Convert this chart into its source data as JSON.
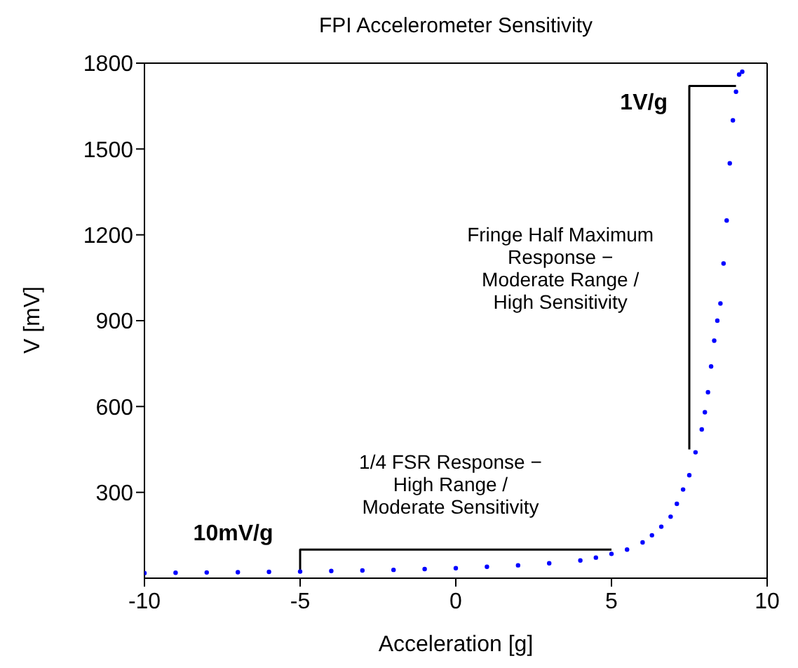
{
  "chart_data": {
    "type": "scatter",
    "title": "FPI Accelerometer Sensitivity",
    "xlabel": "Acceleration [g]",
    "ylabel": "V [mV]",
    "xlim": [
      -10,
      10
    ],
    "xticks": [
      -10,
      -5,
      0,
      5,
      10
    ],
    "ylim": [
      0,
      1800
    ],
    "yticks": [
      300,
      600,
      900,
      1200,
      1500,
      1800
    ],
    "grid": false,
    "legend": false,
    "marker": "circle",
    "annotations": [
      "10mV/g",
      "1/4 FSR Response −\nHigh Range /\nModerate Sensitivity",
      "1V/g",
      "Fringe Half Maximum\nResponse −\nModerate Range /\nHigh Sensitivity"
    ],
    "series": [
      {
        "color": "#0000ff",
        "x": [
          -10,
          -9,
          -8,
          -7,
          -6,
          -5,
          -4,
          -3,
          -2,
          -1,
          0,
          1,
          2,
          3,
          4,
          4.5,
          5,
          5.5,
          6,
          6.3,
          6.6,
          6.9,
          7.1,
          7.3,
          7.5,
          7.7,
          7.9,
          8.0,
          8.1,
          8.2,
          8.3,
          8.4,
          8.5,
          8.6,
          8.7,
          8.8,
          8.9,
          9.0,
          9.1,
          9.2
        ],
        "values": [
          18,
          19,
          20,
          21,
          22,
          23,
          25,
          27,
          29,
          32,
          35,
          40,
          45,
          52,
          62,
          72,
          85,
          100,
          125,
          150,
          180,
          215,
          260,
          310,
          360,
          440,
          520,
          580,
          650,
          740,
          830,
          900,
          960,
          1100,
          1250,
          1450,
          1600,
          1700,
          1760,
          1770
        ]
      },
      {
        "type": "line",
        "color": "#000000",
        "marker": "none",
        "x": [
          -5,
          -5,
          5
        ],
        "values": [
          20,
          100,
          100
        ]
      },
      {
        "type": "line",
        "color": "#000000",
        "marker": "none",
        "x": [
          7.5,
          7.5,
          9
        ],
        "values": [
          450,
          1720,
          1720
        ]
      }
    ]
  }
}
